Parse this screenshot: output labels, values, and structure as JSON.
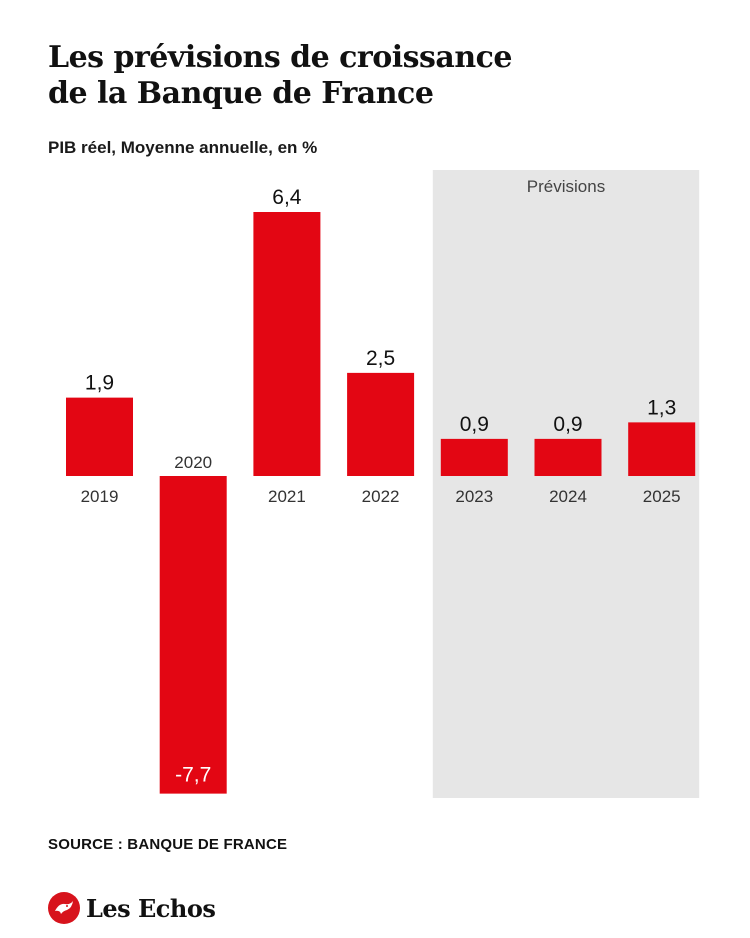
{
  "header": {
    "title_line1": "Les prévisions de croissance",
    "title_line2": "de la Banque de France",
    "subtitle": "PIB réel, Moyenne annuelle, en %"
  },
  "footer": {
    "source": "SOURCE : BANQUE DE FRANCE",
    "brand": "Les Echos"
  },
  "chart_data": {
    "type": "bar",
    "categories": [
      "2019",
      "2020",
      "2021",
      "2022",
      "2023",
      "2024",
      "2025"
    ],
    "values": [
      1.9,
      -7.7,
      6.4,
      2.5,
      0.9,
      0.9,
      1.3
    ],
    "value_labels": [
      "1,9",
      "-7,7",
      "6,4",
      "2,5",
      "0,9",
      "0,9",
      "1,3"
    ],
    "forecast_label": "Prévisions",
    "forecast_categories": [
      "2023",
      "2024",
      "2025"
    ],
    "title": "Les prévisions de croissance de la Banque de France",
    "subtitle": "PIB réel, Moyenne annuelle, en %",
    "xlabel": "",
    "ylabel": "",
    "ylim": [
      -7.7,
      6.4
    ],
    "grid": false,
    "colors": {
      "bar": "#e30613",
      "forecast_band": "#e6e6e6"
    }
  }
}
